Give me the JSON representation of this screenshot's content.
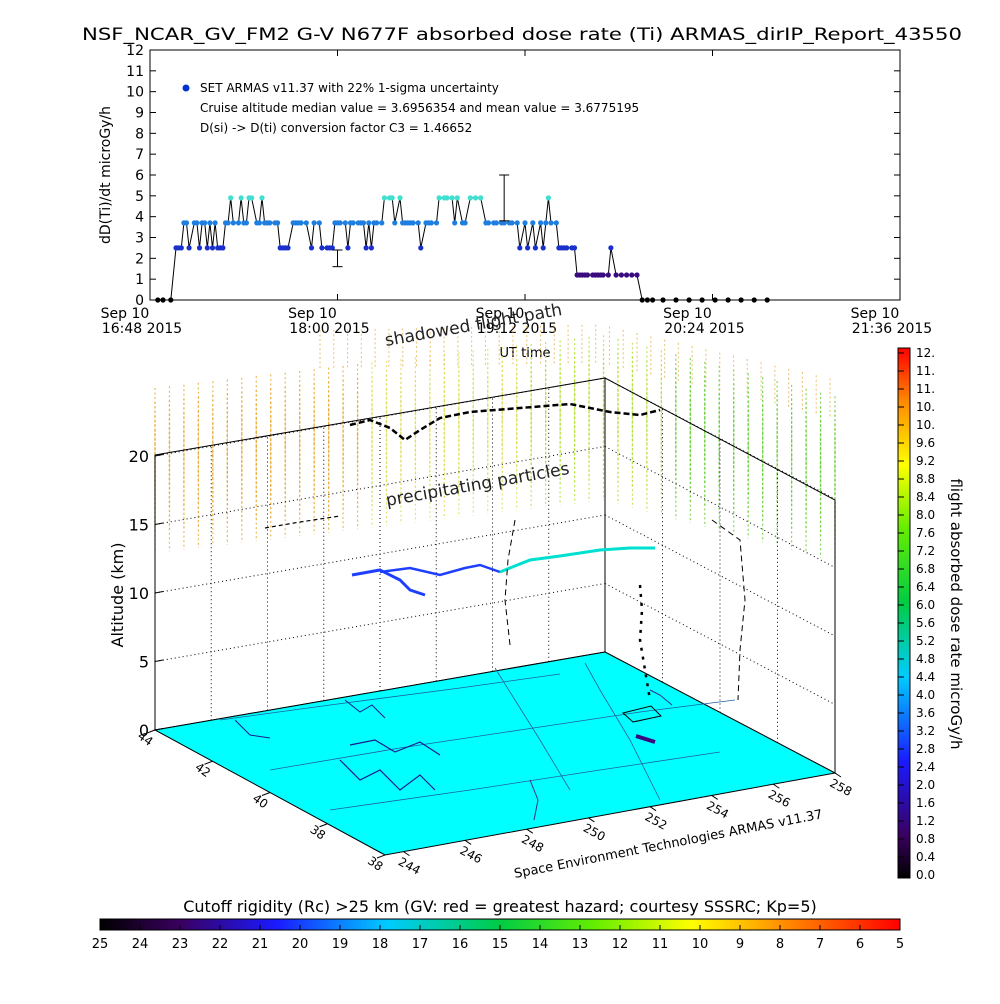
{
  "title": "NSF_NCAR_GV_FM2 G-V     N677F  absorbed dose rate (Ti) ARMAS_dirIP_Report_43550",
  "chart_data": [
    {
      "type": "line",
      "ylabel": "dD(Ti)/dt microGy/h",
      "xlabel": "UT time",
      "ylim": [
        0,
        12
      ],
      "yticks": [
        "0",
        "1",
        "2",
        "3",
        "4",
        "5",
        "6",
        "7",
        "8",
        "9",
        "10",
        "11",
        "12"
      ],
      "xtick_labels": [
        {
          "line1": "Sep 10",
          "line2": "16:48 2015"
        },
        {
          "line1": "Sep 10",
          "line2": "18:00 2015"
        },
        {
          "line1": "Sep 10",
          "line2": "19:12 2015"
        },
        {
          "line1": "Sep 10",
          "line2": "20:24 2015"
        },
        {
          "line1": "Sep 10",
          "line2": "21:36 2015"
        }
      ],
      "legend": {
        "series_label": "SET ARMAS v11.37 with 22% 1-sigma uncertainty",
        "note1": "Cruise altitude median value = 3.6956354 and mean value = 3.6775195",
        "note2": "D(si) -> D(ti) conversion factor C3 = 1.46652"
      },
      "series": [
        {
          "name": "SET ARMAS v11.37 with 22% 1-sigma uncertainty",
          "x": [
            "16:51",
            "16:53",
            "16:56",
            "16:58",
            "16:59",
            "17:00",
            "17:01",
            "17:02",
            "17:03",
            "17:05",
            "17:06",
            "17:07",
            "17:08",
            "17:09",
            "17:10",
            "17:11",
            "17:12",
            "17:13",
            "17:14",
            "17:15",
            "17:16",
            "17:17",
            "17:18",
            "17:19",
            "17:20",
            "17:22",
            "17:23",
            "17:24",
            "17:25",
            "17:26",
            "17:27",
            "17:29",
            "17:30",
            "17:31",
            "17:32",
            "17:33",
            "17:34",
            "17:36",
            "17:37",
            "17:38",
            "17:39",
            "17:40",
            "17:41",
            "17:43",
            "17:44",
            "17:45",
            "17:46",
            "17:48",
            "17:50",
            "17:51",
            "17:53",
            "17:54",
            "17:56",
            "17:57",
            "17:58",
            "17:59",
            "18:00",
            "18:01",
            "18:03",
            "18:04",
            "18:05",
            "18:06",
            "18:08",
            "18:09",
            "18:10",
            "18:11",
            "18:12",
            "18:13",
            "18:14",
            "18:15",
            "18:17",
            "18:18",
            "18:20",
            "18:21",
            "18:22",
            "18:24",
            "18:25",
            "18:26",
            "18:27",
            "18:28",
            "18:29",
            "18:31",
            "18:32",
            "18:34",
            "18:35",
            "18:36",
            "18:38",
            "18:39",
            "18:41",
            "18:42",
            "18:44",
            "18:45",
            "18:46",
            "18:48",
            "18:49",
            "18:51",
            "18:53",
            "18:55",
            "18:57",
            "18:58",
            "19:00",
            "19:01",
            "19:03",
            "19:04",
            "19:06",
            "19:07",
            "19:09",
            "19:10",
            "19:12",
            "19:13",
            "19:15",
            "19:16",
            "19:18",
            "19:19",
            "19:20",
            "19:21",
            "19:22",
            "19:24",
            "19:25",
            "19:26",
            "19:27",
            "19:28",
            "19:30",
            "19:31",
            "19:32",
            "19:33",
            "19:34",
            "19:35",
            "19:36",
            "19:38",
            "19:39",
            "19:40",
            "19:41",
            "19:42",
            "19:44",
            "19:45",
            "19:47",
            "19:49",
            "19:51",
            "19:53",
            "19:55",
            "19:57",
            "19:59",
            "20:01",
            "20:05",
            "20:10",
            "20:15",
            "20:20",
            "20:25",
            "20:30",
            "20:35",
            "20:40",
            "20:45"
          ],
          "y": [
            0.0,
            0.0,
            0.0,
            2.5,
            2.5,
            2.5,
            3.7,
            3.7,
            2.5,
            3.7,
            3.7,
            2.5,
            3.7,
            3.7,
            2.5,
            3.7,
            2.5,
            3.7,
            2.5,
            2.5,
            2.5,
            3.7,
            3.7,
            4.9,
            3.7,
            3.7,
            4.9,
            3.7,
            3.7,
            4.9,
            4.9,
            3.7,
            3.7,
            4.9,
            3.7,
            3.7,
            3.7,
            3.7,
            3.7,
            2.5,
            2.5,
            2.5,
            2.5,
            3.7,
            3.7,
            3.7,
            3.7,
            3.7,
            2.5,
            3.7,
            3.7,
            2.5,
            2.5,
            2.5,
            2.5,
            3.7,
            3.7,
            3.7,
            3.7,
            2.5,
            3.7,
            3.7,
            3.7,
            3.7,
            3.7,
            2.5,
            3.7,
            2.5,
            3.7,
            3.7,
            3.7,
            4.9,
            4.9,
            4.9,
            3.7,
            4.9,
            3.7,
            3.7,
            3.7,
            3.7,
            3.7,
            3.7,
            2.5,
            3.7,
            3.7,
            3.7,
            3.7,
            4.9,
            4.9,
            4.9,
            4.9,
            3.7,
            4.9,
            3.7,
            3.7,
            4.9,
            4.9,
            4.9,
            3.7,
            3.7,
            3.7,
            3.7,
            3.7,
            3.7,
            3.7,
            3.7,
            3.7,
            2.5,
            3.7,
            2.5,
            3.7,
            2.5,
            3.7,
            2.5,
            3.7,
            4.9,
            3.7,
            3.7,
            2.5,
            2.5,
            2.5,
            2.5,
            2.5,
            2.5,
            1.2,
            1.2,
            1.2,
            1.2,
            1.2,
            1.2,
            1.2,
            1.2,
            1.2,
            1.2,
            1.2,
            2.5,
            1.2,
            1.2,
            1.2,
            1.2,
            1.2,
            0.0,
            0.0,
            0.0,
            0.0,
            0.0,
            0.0,
            0.0,
            0.0,
            0.0,
            0.0,
            0.0,
            0.0
          ],
          "error_bars": [
            {
              "x": "18:00",
              "y": 2.0,
              "low": 1.6,
              "high": 2.4
            },
            {
              "x": "19:04",
              "y": 4.9,
              "low": 3.8,
              "high": 6.0
            }
          ]
        }
      ]
    },
    {
      "type": "scatter",
      "zlabel": "Altitude (km)",
      "zticks": [
        "0",
        "5",
        "10",
        "15",
        "20"
      ],
      "x_ticks": [
        "244",
        "246",
        "248",
        "250",
        "252",
        "254",
        "256",
        "258"
      ],
      "y_ticks": [
        "38",
        "38",
        "40",
        "42",
        "44"
      ],
      "credit": "Space Environment Technologies ARMAS v11.37",
      "annotations": [
        "shadowed flight path",
        "precipitating particles"
      ],
      "colorbar": {
        "label": "flight absorbed dose rate microGy/h",
        "ticks": [
          "12.",
          "11.",
          "11.",
          "10.",
          "10.",
          "9.6",
          "9.2",
          "8.8",
          "8.4",
          "8.0",
          "7.6",
          "7.2",
          "6.8",
          "6.4",
          "6.0",
          "5.6",
          "5.2",
          "4.8",
          "4.4",
          "4.0",
          "3.6",
          "3.2",
          "2.8",
          "2.4",
          "2.0",
          "1.6",
          "1.2",
          "0.8",
          "0.4",
          "0.0"
        ]
      }
    },
    {
      "type": "heatmap",
      "title": "Cutoff rigidity (Rc) >25 km (GV: red = greatest hazard; courtesy SSSRC; Kp=5)",
      "ticks": [
        "25",
        "24",
        "23",
        "22",
        "21",
        "20",
        "19",
        "18",
        "17",
        "16",
        "15",
        "14",
        "13",
        "12",
        "11",
        "10",
        "9",
        "8",
        "7",
        "6",
        "5"
      ]
    }
  ],
  "colors": {
    "ground": "#00ffff",
    "track_low": "#000000",
    "track_mid": "#1f3fff",
    "track_high": "#00e0d0",
    "legend_dot": "#0033cc"
  }
}
